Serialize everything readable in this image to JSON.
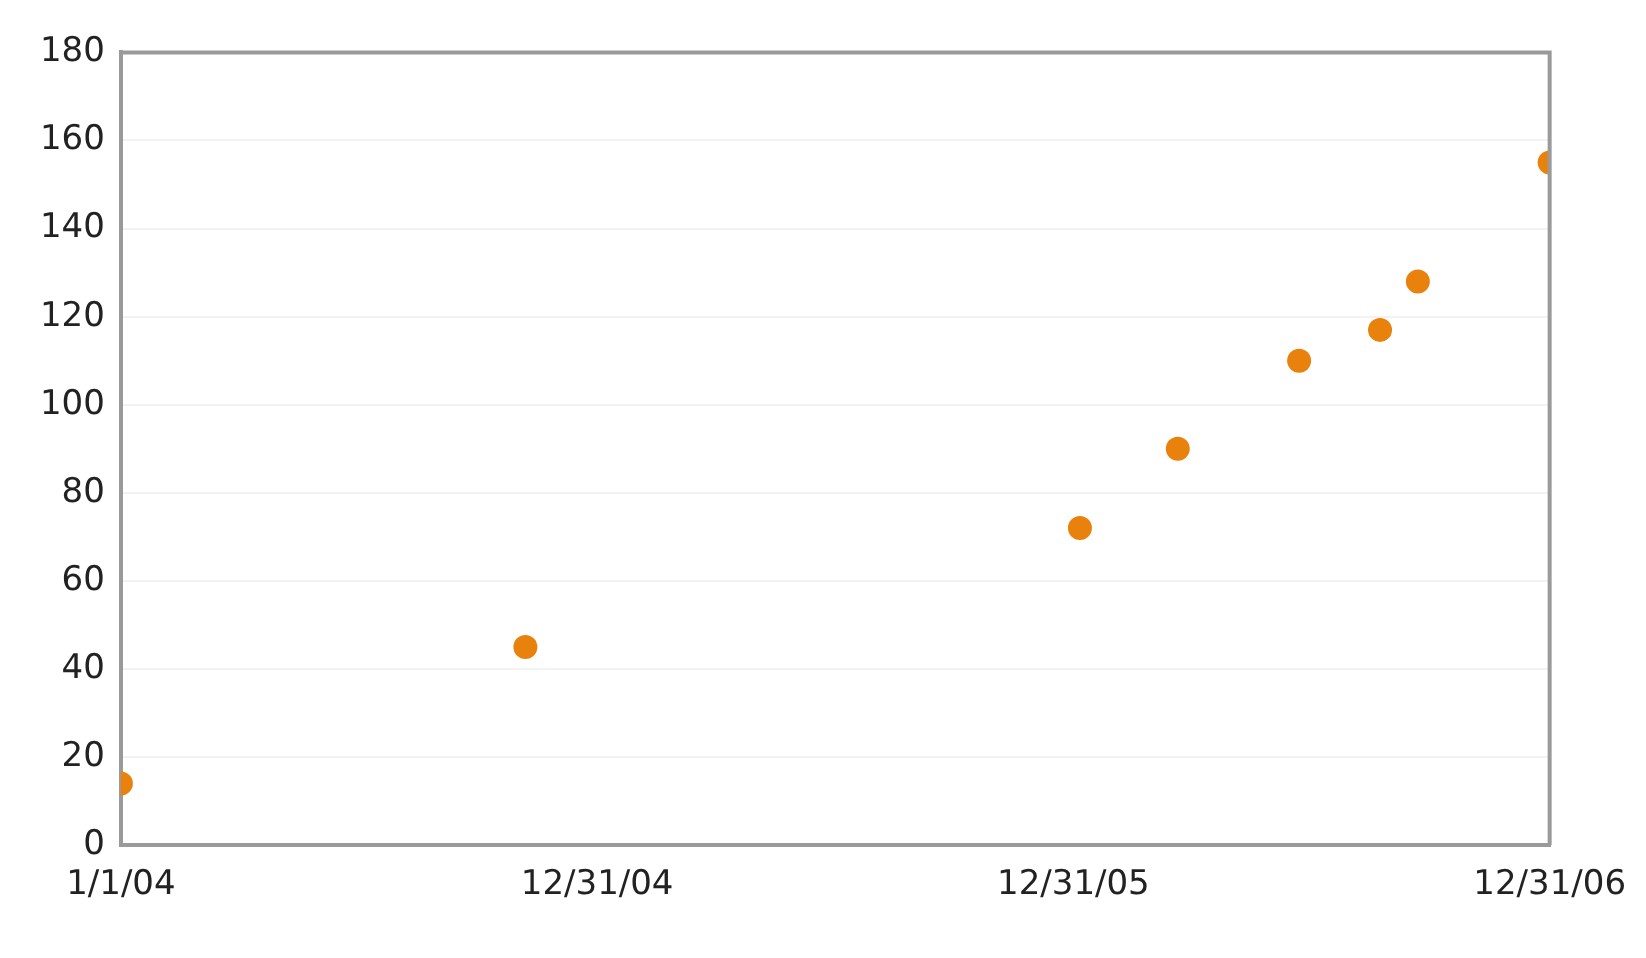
{
  "chart_data": {
    "type": "scatter",
    "x": [
      "2004-01-01",
      "2004-11-06",
      "2006-01-05",
      "2006-03-21",
      "2006-06-22",
      "2006-08-23",
      "2006-09-21",
      "2006-12-31"
    ],
    "series": [
      {
        "color": "#e8820c",
        "values": [
          14,
          45,
          72,
          90,
          110,
          117,
          128,
          155
        ]
      }
    ],
    "xlim": [
      "2004-01-01",
      "2006-12-31"
    ],
    "xticks": [
      {
        "value": "2004-01-01",
        "label": "1/1/04"
      },
      {
        "value": "2004-12-31",
        "label": "12/31/04"
      },
      {
        "value": "2005-12-31",
        "label": "12/31/05"
      },
      {
        "value": "2006-12-31",
        "label": "12/31/06"
      }
    ],
    "ylim": [
      0,
      180
    ],
    "yticks": [
      0,
      20,
      40,
      60,
      80,
      100,
      120,
      140,
      160,
      180
    ],
    "grid": "y",
    "marker": "circle"
  }
}
